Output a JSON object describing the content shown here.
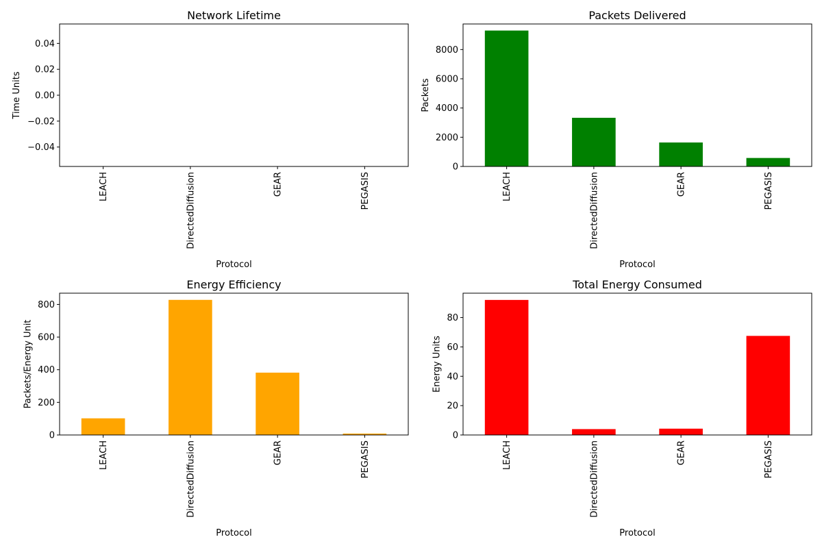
{
  "chart_data": [
    {
      "type": "bar",
      "title": "Network Lifetime",
      "xlabel": "Protocol",
      "ylabel": "Time Units",
      "categories": [
        "LEACH",
        "DirectedDiffusion",
        "GEAR",
        "PEGASIS"
      ],
      "values": [
        0,
        0,
        0,
        0
      ],
      "color": "#008000",
      "ylim": [
        -0.055,
        0.055
      ],
      "yticks": [
        -0.04,
        -0.02,
        0.0,
        0.02,
        0.04
      ],
      "ytick_labels": [
        "−0.04",
        "−0.02",
        "0.00",
        "0.02",
        "0.04"
      ],
      "grid": false,
      "legend": "none"
    },
    {
      "type": "bar",
      "title": "Packets Delivered",
      "xlabel": "Protocol",
      "ylabel": "Packets",
      "categories": [
        "LEACH",
        "DirectedDiffusion",
        "GEAR",
        "PEGASIS"
      ],
      "values": [
        9300,
        3330,
        1640,
        580
      ],
      "color": "#008000",
      "ylim": [
        0,
        9750
      ],
      "yticks": [
        0,
        2000,
        4000,
        6000,
        8000
      ],
      "ytick_labels": [
        "0",
        "2000",
        "4000",
        "6000",
        "8000"
      ],
      "grid": false,
      "legend": "none"
    },
    {
      "type": "bar",
      "title": "Energy Efficiency",
      "xlabel": "Protocol",
      "ylabel": "Packets/Energy Unit",
      "categories": [
        "LEACH",
        "DirectedDiffusion",
        "GEAR",
        "PEGASIS"
      ],
      "values": [
        102,
        828,
        382,
        8.5
      ],
      "color": "#FFA500",
      "ylim": [
        0,
        869
      ],
      "yticks": [
        0,
        200,
        400,
        600,
        800
      ],
      "ytick_labels": [
        "0",
        "200",
        "400",
        "600",
        "800"
      ],
      "grid": false,
      "legend": "none"
    },
    {
      "type": "bar",
      "title": "Total Energy Consumed",
      "xlabel": "Protocol",
      "ylabel": "Energy Units",
      "categories": [
        "LEACH",
        "DirectedDiffusion",
        "GEAR",
        "PEGASIS"
      ],
      "values": [
        92,
        4,
        4.3,
        67.5
      ],
      "color": "#FF0000",
      "ylim": [
        0,
        96.6
      ],
      "yticks": [
        0,
        20,
        40,
        60,
        80
      ],
      "ytick_labels": [
        "0",
        "20",
        "40",
        "60",
        "80"
      ],
      "grid": false,
      "legend": "none"
    }
  ]
}
